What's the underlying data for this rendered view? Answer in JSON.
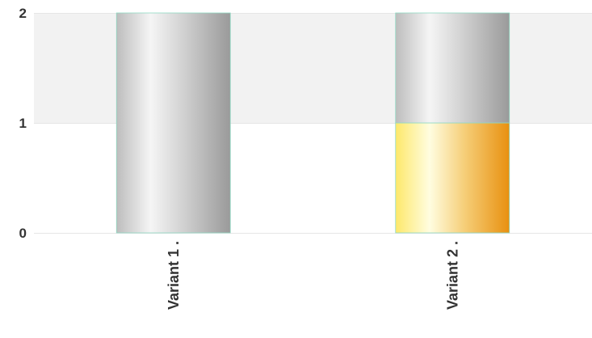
{
  "chart_data": {
    "type": "bar",
    "stacked": true,
    "categories": [
      "Variant 1  .",
      "Variant 2  ."
    ],
    "series": [
      {
        "values": [
          0,
          1
        ],
        "color": "#f0a830",
        "style": "gold-cylinder"
      },
      {
        "values": [
          2,
          1
        ],
        "color": "#b8b8b8",
        "style": "silver-cylinder"
      }
    ],
    "yticks": [
      "0",
      "1",
      "2"
    ],
    "ylim": [
      0,
      2
    ],
    "grid": true,
    "band_color": "#f2f2f2",
    "bar_outline": "#8fd9c3"
  }
}
